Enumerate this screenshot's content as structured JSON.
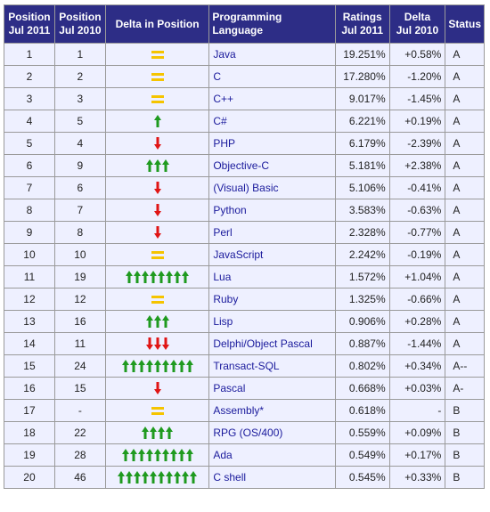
{
  "headers": {
    "pos_2011": [
      "Position",
      "Jul 2011"
    ],
    "pos_2010": [
      "Position",
      "Jul 2010"
    ],
    "delta_pos": "Delta in Position",
    "language": "Programming Language",
    "ratings": [
      "Ratings",
      "Jul 2011"
    ],
    "delta": [
      "Delta",
      "Jul 2010"
    ],
    "status": "Status"
  },
  "colors": {
    "header_bg": "#2d2d86",
    "row_bg": "#eef0ff",
    "up": "#1f9a1f",
    "down": "#e01515",
    "same": "#f5c400"
  },
  "rows": [
    {
      "pos2011": "1",
      "pos2010": "1",
      "change": "same",
      "count": 1,
      "language": "Java",
      "rating": "19.251%",
      "delta": "+0.58%",
      "status": "A"
    },
    {
      "pos2011": "2",
      "pos2010": "2",
      "change": "same",
      "count": 1,
      "language": "C",
      "rating": "17.280%",
      "delta": "-1.20%",
      "status": "A"
    },
    {
      "pos2011": "3",
      "pos2010": "3",
      "change": "same",
      "count": 1,
      "language": "C++",
      "rating": "9.017%",
      "delta": "-1.45%",
      "status": "A"
    },
    {
      "pos2011": "4",
      "pos2010": "5",
      "change": "up",
      "count": 1,
      "language": "C#",
      "rating": "6.221%",
      "delta": "+0.19%",
      "status": "A"
    },
    {
      "pos2011": "5",
      "pos2010": "4",
      "change": "down",
      "count": 1,
      "language": "PHP",
      "rating": "6.179%",
      "delta": "-2.39%",
      "status": "A"
    },
    {
      "pos2011": "6",
      "pos2010": "9",
      "change": "up",
      "count": 3,
      "language": "Objective-C",
      "rating": "5.181%",
      "delta": "+2.38%",
      "status": "A"
    },
    {
      "pos2011": "7",
      "pos2010": "6",
      "change": "down",
      "count": 1,
      "language": "(Visual) Basic",
      "rating": "5.106%",
      "delta": "-0.41%",
      "status": "A"
    },
    {
      "pos2011": "8",
      "pos2010": "7",
      "change": "down",
      "count": 1,
      "language": "Python",
      "rating": "3.583%",
      "delta": "-0.63%",
      "status": "A"
    },
    {
      "pos2011": "9",
      "pos2010": "8",
      "change": "down",
      "count": 1,
      "language": "Perl",
      "rating": "2.328%",
      "delta": "-0.77%",
      "status": "A"
    },
    {
      "pos2011": "10",
      "pos2010": "10",
      "change": "same",
      "count": 1,
      "language": "JavaScript",
      "rating": "2.242%",
      "delta": "-0.19%",
      "status": "A"
    },
    {
      "pos2011": "11",
      "pos2010": "19",
      "change": "up",
      "count": 8,
      "language": "Lua",
      "rating": "1.572%",
      "delta": "+1.04%",
      "status": "A"
    },
    {
      "pos2011": "12",
      "pos2010": "12",
      "change": "same",
      "count": 1,
      "language": "Ruby",
      "rating": "1.325%",
      "delta": "-0.66%",
      "status": "A"
    },
    {
      "pos2011": "13",
      "pos2010": "16",
      "change": "up",
      "count": 3,
      "language": "Lisp",
      "rating": "0.906%",
      "delta": "+0.28%",
      "status": "A"
    },
    {
      "pos2011": "14",
      "pos2010": "11",
      "change": "down",
      "count": 3,
      "language": "Delphi/Object Pascal",
      "rating": "0.887%",
      "delta": "-1.44%",
      "status": "A"
    },
    {
      "pos2011": "15",
      "pos2010": "24",
      "change": "up",
      "count": 9,
      "language": "Transact-SQL",
      "rating": "0.802%",
      "delta": "+0.34%",
      "status": "A--"
    },
    {
      "pos2011": "16",
      "pos2010": "15",
      "change": "down",
      "count": 1,
      "language": "Pascal",
      "rating": "0.668%",
      "delta": "+0.03%",
      "status": "A-"
    },
    {
      "pos2011": "17",
      "pos2010": "-",
      "change": "same",
      "count": 1,
      "language": "Assembly*",
      "rating": "0.618%",
      "delta": "-",
      "status": "B"
    },
    {
      "pos2011": "18",
      "pos2010": "22",
      "change": "up",
      "count": 4,
      "language": "RPG (OS/400)",
      "rating": "0.559%",
      "delta": "+0.09%",
      "status": "B"
    },
    {
      "pos2011": "19",
      "pos2010": "28",
      "change": "up",
      "count": 9,
      "language": "Ada",
      "rating": "0.549%",
      "delta": "+0.17%",
      "status": "B"
    },
    {
      "pos2011": "20",
      "pos2010": "46",
      "change": "up",
      "count": 10,
      "language": "C shell",
      "rating": "0.545%",
      "delta": "+0.33%",
      "status": "B"
    }
  ]
}
